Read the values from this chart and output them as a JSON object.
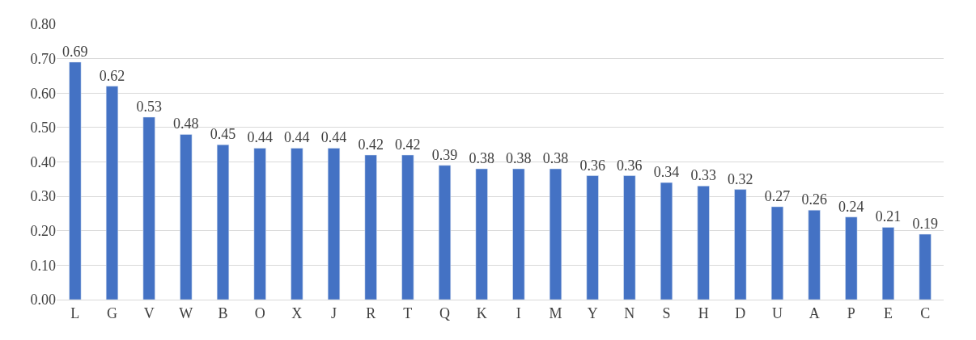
{
  "chart_data": {
    "type": "bar",
    "categories": [
      "L",
      "G",
      "V",
      "W",
      "B",
      "O",
      "X",
      "J",
      "R",
      "T",
      "Q",
      "K",
      "I",
      "M",
      "Y",
      "N",
      "S",
      "H",
      "D",
      "U",
      "A",
      "P",
      "E",
      "C"
    ],
    "values": [
      0.69,
      0.62,
      0.53,
      0.48,
      0.45,
      0.44,
      0.44,
      0.44,
      0.42,
      0.42,
      0.39,
      0.38,
      0.38,
      0.38,
      0.36,
      0.36,
      0.34,
      0.33,
      0.32,
      0.27,
      0.26,
      0.24,
      0.21,
      0.19
    ],
    "color": "#4472c4",
    "data_labels": true,
    "grid": "y",
    "ylim": [
      0,
      0.8
    ],
    "yticks": [
      {
        "value": 0,
        "label": "0.00"
      },
      {
        "value": 0.1,
        "label": "0.10"
      },
      {
        "value": 0.2,
        "label": "0.20"
      },
      {
        "value": 0.3,
        "label": "0.30"
      },
      {
        "value": 0.4,
        "label": "0.40"
      },
      {
        "value": 0.5,
        "label": "0.50"
      },
      {
        "value": 0.6,
        "label": "0.60"
      },
      {
        "value": 0.7,
        "label": "0.70"
      },
      {
        "value": 0.8,
        "label": "0.80"
      }
    ]
  }
}
